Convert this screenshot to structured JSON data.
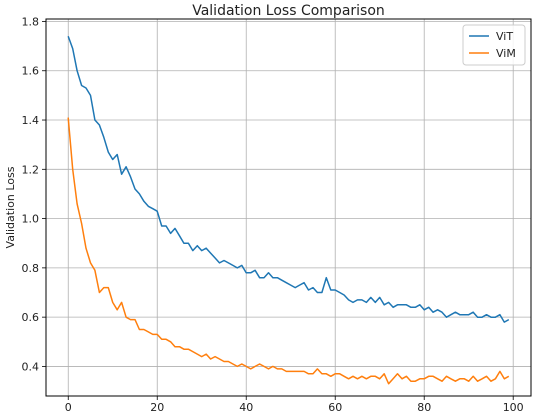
{
  "chart_data": {
    "type": "line",
    "title": "Validation Loss Comparison",
    "xlabel": "",
    "ylabel": "Validation Loss",
    "xlim": [
      -5,
      104
    ],
    "ylim": [
      0.28,
      1.81
    ],
    "xticks": [
      0,
      20,
      40,
      60,
      80,
      100
    ],
    "yticks": [
      0.4,
      0.6,
      0.8,
      1.0,
      1.2,
      1.4,
      1.6,
      1.8
    ],
    "grid": true,
    "legend_position": "top-right",
    "series": [
      {
        "name": "ViT",
        "color": "#1f77b4",
        "x": [
          0,
          1,
          2,
          3,
          4,
          5,
          6,
          7,
          8,
          9,
          10,
          11,
          12,
          13,
          14,
          15,
          16,
          17,
          18,
          19,
          20,
          21,
          22,
          23,
          24,
          25,
          26,
          27,
          28,
          29,
          30,
          31,
          32,
          33,
          34,
          35,
          36,
          37,
          38,
          39,
          40,
          41,
          42,
          43,
          44,
          45,
          46,
          47,
          48,
          49,
          50,
          51,
          52,
          53,
          54,
          55,
          56,
          57,
          58,
          59,
          60,
          61,
          62,
          63,
          64,
          65,
          66,
          67,
          68,
          69,
          70,
          71,
          72,
          73,
          74,
          75,
          76,
          77,
          78,
          79,
          80,
          81,
          82,
          83,
          84,
          85,
          86,
          87,
          88,
          89,
          90,
          91,
          92,
          93,
          94,
          95,
          96,
          97,
          98,
          99
        ],
        "values": [
          1.74,
          1.69,
          1.6,
          1.54,
          1.53,
          1.5,
          1.4,
          1.38,
          1.33,
          1.27,
          1.24,
          1.26,
          1.18,
          1.21,
          1.17,
          1.12,
          1.1,
          1.07,
          1.05,
          1.04,
          1.03,
          0.97,
          0.97,
          0.94,
          0.96,
          0.93,
          0.9,
          0.9,
          0.87,
          0.89,
          0.87,
          0.88,
          0.86,
          0.84,
          0.82,
          0.83,
          0.82,
          0.81,
          0.8,
          0.81,
          0.78,
          0.78,
          0.79,
          0.76,
          0.76,
          0.78,
          0.76,
          0.76,
          0.75,
          0.74,
          0.73,
          0.72,
          0.73,
          0.74,
          0.71,
          0.72,
          0.7,
          0.7,
          0.76,
          0.71,
          0.71,
          0.7,
          0.69,
          0.67,
          0.66,
          0.67,
          0.67,
          0.66,
          0.68,
          0.66,
          0.68,
          0.65,
          0.66,
          0.64,
          0.65,
          0.65,
          0.65,
          0.64,
          0.64,
          0.65,
          0.63,
          0.64,
          0.62,
          0.63,
          0.62,
          0.6,
          0.61,
          0.62,
          0.61,
          0.61,
          0.61,
          0.62,
          0.6,
          0.6,
          0.61,
          0.6,
          0.6,
          0.61,
          0.58,
          0.59
        ]
      },
      {
        "name": "ViM",
        "color": "#ff7f0e",
        "x": [
          0,
          1,
          2,
          3,
          4,
          5,
          6,
          7,
          8,
          9,
          10,
          11,
          12,
          13,
          14,
          15,
          16,
          17,
          18,
          19,
          20,
          21,
          22,
          23,
          24,
          25,
          26,
          27,
          28,
          29,
          30,
          31,
          32,
          33,
          34,
          35,
          36,
          37,
          38,
          39,
          40,
          41,
          42,
          43,
          44,
          45,
          46,
          47,
          48,
          49,
          50,
          51,
          52,
          53,
          54,
          55,
          56,
          57,
          58,
          59,
          60,
          61,
          62,
          63,
          64,
          65,
          66,
          67,
          68,
          69,
          70,
          71,
          72,
          73,
          74,
          75,
          76,
          77,
          78,
          79,
          80,
          81,
          82,
          83,
          84,
          85,
          86,
          87,
          88,
          89,
          90,
          91,
          92,
          93,
          94,
          95,
          96,
          97,
          98,
          99
        ],
        "values": [
          1.41,
          1.2,
          1.06,
          0.98,
          0.88,
          0.82,
          0.79,
          0.7,
          0.72,
          0.72,
          0.66,
          0.63,
          0.66,
          0.6,
          0.59,
          0.59,
          0.55,
          0.55,
          0.54,
          0.53,
          0.53,
          0.51,
          0.51,
          0.5,
          0.48,
          0.48,
          0.47,
          0.47,
          0.46,
          0.45,
          0.44,
          0.45,
          0.43,
          0.44,
          0.43,
          0.42,
          0.42,
          0.41,
          0.4,
          0.41,
          0.4,
          0.39,
          0.4,
          0.41,
          0.4,
          0.39,
          0.4,
          0.39,
          0.39,
          0.38,
          0.38,
          0.38,
          0.38,
          0.38,
          0.37,
          0.37,
          0.39,
          0.37,
          0.37,
          0.36,
          0.37,
          0.37,
          0.36,
          0.35,
          0.36,
          0.35,
          0.36,
          0.35,
          0.36,
          0.36,
          0.35,
          0.37,
          0.33,
          0.35,
          0.37,
          0.35,
          0.36,
          0.34,
          0.34,
          0.35,
          0.35,
          0.36,
          0.36,
          0.35,
          0.34,
          0.36,
          0.35,
          0.34,
          0.35,
          0.35,
          0.34,
          0.36,
          0.34,
          0.35,
          0.36,
          0.34,
          0.35,
          0.38,
          0.35,
          0.36
        ]
      }
    ]
  }
}
